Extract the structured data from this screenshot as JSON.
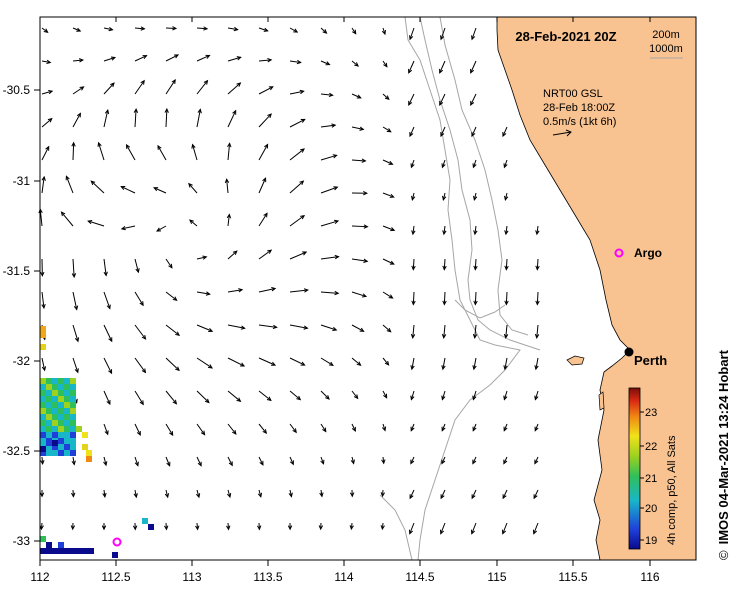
{
  "map": {
    "title": "28-Feb-2021 20Z",
    "depth_legend": [
      "200m",
      "1000m"
    ],
    "current_info": [
      "NRT00 GSL",
      "28-Feb 18:00Z",
      "0.5m/s (1kt 6h)"
    ],
    "x_ticks": [
      "112",
      "112.5",
      "113",
      "113.5",
      "114",
      "114.5",
      "115",
      "115.5",
      "116"
    ],
    "y_ticks": [
      "-30.5",
      "-31",
      "-31.5",
      "-32",
      "-32.5",
      "-33"
    ],
    "places": {
      "perth": "Perth",
      "argo": "Argo"
    },
    "colorbar": {
      "ticks": [
        "23",
        "22",
        "21",
        "20",
        "19"
      ],
      "caption": "4h comp, p50, All Sats"
    },
    "credit": "IMOS 04-Mar-2021 13:24 Hobart",
    "credit_symbol": "©",
    "colors": {
      "land": "#f9c391",
      "contour": "#a6a6a6",
      "argo": "#ff00ff"
    }
  }
}
